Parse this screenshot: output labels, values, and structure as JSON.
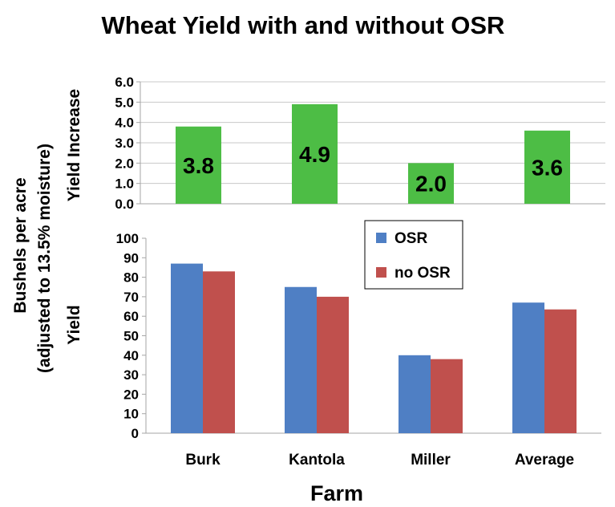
{
  "chart_data": [
    {
      "type": "bar",
      "title": "Wheat Yield with and without OSR",
      "ylabel": "Yield Increase",
      "categories": [
        "Burk",
        "Kantola",
        "Miller",
        "Average"
      ],
      "values": [
        3.8,
        4.9,
        2.0,
        3.6
      ],
      "data_labels": [
        "3.8",
        "4.9",
        "2.0",
        "3.6"
      ],
      "ylim": [
        0,
        6
      ],
      "yticks": [
        "0.0",
        "1.0",
        "2.0",
        "3.0",
        "4.0",
        "5.0",
        "6.0"
      ],
      "grid": true,
      "color": "#4dbd45"
    },
    {
      "type": "bar",
      "ylabel": "Yield",
      "xlabel": "Farm",
      "categories": [
        "Burk",
        "Kantola",
        "Miller",
        "Average"
      ],
      "series": [
        {
          "name": "OSR",
          "values": [
            87,
            75,
            40,
            67
          ],
          "color": "#4f7fc4"
        },
        {
          "name": "no OSR",
          "values": [
            83,
            70,
            38,
            63.5
          ],
          "color": "#c0504d"
        }
      ],
      "ylim": [
        0,
        100
      ],
      "yticks": [
        "0",
        "10",
        "20",
        "30",
        "40",
        "50",
        "60",
        "70",
        "80",
        "90",
        "100"
      ],
      "grid": false,
      "legend": "top-center"
    }
  ],
  "shared_axis_label": [
    "Bushels per acre",
    "(adjusted to 13.5% moisture)"
  ]
}
